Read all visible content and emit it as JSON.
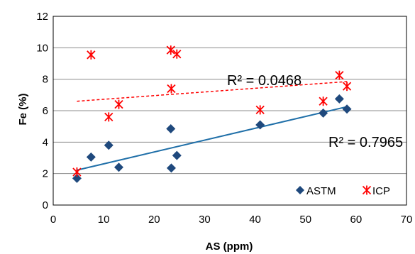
{
  "chart_data": {
    "type": "scatter",
    "xlabel": "AS (ppm)",
    "ylabel": "Fe (%)",
    "xlim": [
      0,
      70
    ],
    "ylim": [
      0,
      12
    ],
    "xticks": [
      0,
      10,
      20,
      30,
      40,
      50,
      60,
      70
    ],
    "yticks": [
      0,
      2,
      4,
      6,
      8,
      10,
      12
    ],
    "grid": "horizontal",
    "legend": "bottom-right",
    "series": [
      {
        "name": "ASTM",
        "color": "#1F497D",
        "marker": "diamond",
        "points": [
          [
            4.7,
            1.7
          ],
          [
            7.5,
            3.05
          ],
          [
            11,
            3.8
          ],
          [
            13,
            2.4
          ],
          [
            23.3,
            4.85
          ],
          [
            23.4,
            2.35
          ],
          [
            24.5,
            3.15
          ],
          [
            41,
            5.1
          ],
          [
            53.5,
            5.85
          ],
          [
            56.7,
            6.75
          ],
          [
            58.2,
            6.1
          ]
        ],
        "trend": {
          "x": [
            4.7,
            58.2
          ],
          "y": [
            2.22,
            6.25
          ],
          "style": "solid"
        },
        "r2_label": "R² = 0.7965"
      },
      {
        "name": "ICP",
        "color": "#FF0000",
        "marker": "star",
        "points": [
          [
            4.7,
            2.1
          ],
          [
            7.5,
            9.55
          ],
          [
            11,
            5.6
          ],
          [
            13,
            6.4
          ],
          [
            23.3,
            9.85
          ],
          [
            23.4,
            7.4
          ],
          [
            24.5,
            9.6
          ],
          [
            41,
            6.05
          ],
          [
            53.5,
            6.6
          ],
          [
            56.7,
            8.25
          ],
          [
            58.2,
            7.55
          ]
        ],
        "trend": {
          "x": [
            4.7,
            58.2
          ],
          "y": [
            6.6,
            7.85
          ],
          "style": "dashed"
        },
        "r2_label": "R² = 0.0468"
      }
    ]
  }
}
